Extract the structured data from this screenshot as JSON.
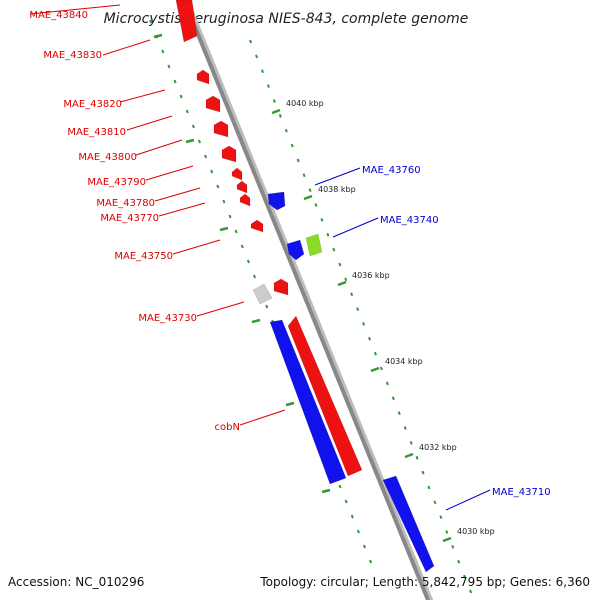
{
  "title": "Microcystis aeruginosa NIES-843, complete genome",
  "footer": {
    "accession": "Accession: NC_010296",
    "summary": "Topology: circular; Length: 5,842,795 bp; Genes: 6,360"
  },
  "colors": {
    "forward_strand": "#ee1111",
    "reverse_strand": "#1111ee",
    "other_strand": "#88dd22",
    "pseudo_gene": "#cccccc",
    "backbone": "#888888",
    "tick": "#339933",
    "tick_label": "#222222",
    "forward_label": "#dd0000",
    "reverse_label": "#0000cc"
  },
  "scale_labels": [
    "4040 kbp",
    "4038 kbp",
    "4036 kbp",
    "4034 kbp",
    "4032 kbp",
    "4030 kbp"
  ],
  "left_genes": [
    {
      "label": "MAE_43840",
      "type": "long"
    },
    {
      "label": "MAE_43830",
      "type": "small"
    },
    {
      "label": "MAE_43820",
      "type": "small"
    },
    {
      "label": "MAE_43810",
      "type": "small"
    },
    {
      "label": "MAE_43800",
      "type": "small"
    },
    {
      "label": "MAE_43790",
      "type": "small"
    },
    {
      "label": "MAE_43780",
      "type": "small"
    },
    {
      "label": "MAE_43770",
      "type": "small"
    },
    {
      "label": "MAE_43750",
      "type": "small"
    },
    {
      "label": "MAE_43730",
      "type": "small"
    },
    {
      "label": "cobN",
      "type": "long"
    }
  ],
  "right_genes": [
    {
      "label": "MAE_43760",
      "type": "small"
    },
    {
      "label": "MAE_43740",
      "type": "small"
    },
    {
      "label": "MAE_43710",
      "type": "long"
    }
  ]
}
